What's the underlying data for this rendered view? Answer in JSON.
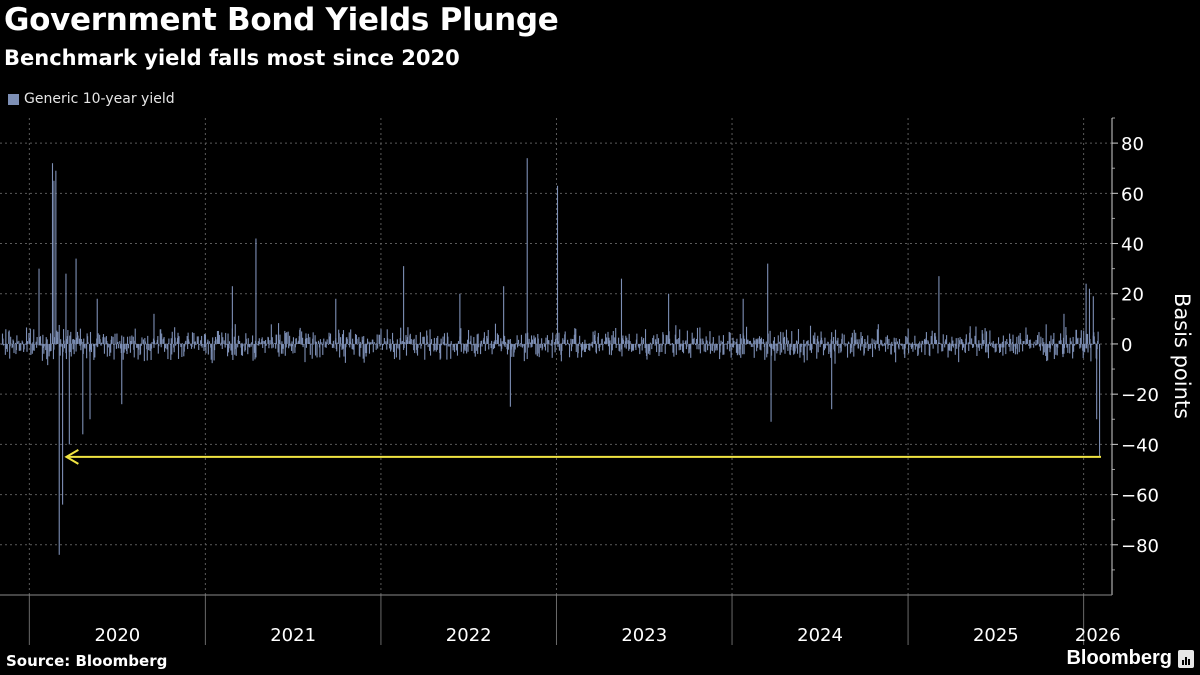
{
  "chart_data": {
    "type": "bar",
    "title": "Government Bond Yields Plunge",
    "subtitle": "Benchmark yield falls most since 2020",
    "ylabel": "Basis points",
    "ylim": [
      -100,
      90
    ],
    "yticks": [
      80,
      60,
      40,
      20,
      0,
      -20,
      -40,
      -60,
      -80
    ],
    "x_ticks": [
      "2020",
      "2021",
      "2022",
      "2023",
      "2024",
      "2025",
      "2026"
    ],
    "x_range": [
      "2019-11-01",
      "2026-03-01"
    ],
    "grid": true,
    "legend_position": "top-left",
    "series": [
      {
        "name": "Generic 10-year yield",
        "color": "#7d8fb5",
        "points": [
          [
            "2020-01-20",
            30
          ],
          [
            "2020-02-17",
            72
          ],
          [
            "2020-02-20",
            65
          ],
          [
            "2020-02-24",
            69
          ],
          [
            "2020-03-02",
            -84
          ],
          [
            "2020-03-09",
            -64
          ],
          [
            "2020-03-16",
            28
          ],
          [
            "2020-03-23",
            -40
          ],
          [
            "2020-04-06",
            34
          ],
          [
            "2020-04-20",
            -36
          ],
          [
            "2020-05-05",
            -30
          ],
          [
            "2020-05-20",
            18
          ],
          [
            "2020-07-10",
            -24
          ],
          [
            "2020-09-15",
            12
          ],
          [
            "2021-02-25",
            23
          ],
          [
            "2021-04-15",
            42
          ],
          [
            "2021-09-28",
            18
          ],
          [
            "2022-02-16",
            31
          ],
          [
            "2022-06-13",
            20
          ],
          [
            "2022-09-12",
            23
          ],
          [
            "2022-09-26",
            -25
          ],
          [
            "2022-10-31",
            74
          ],
          [
            "2023-01-02",
            63
          ],
          [
            "2023-05-15",
            26
          ],
          [
            "2023-08-21",
            20
          ],
          [
            "2024-01-23",
            18
          ],
          [
            "2024-03-14",
            32
          ],
          [
            "2024-03-21",
            -31
          ],
          [
            "2024-07-25",
            -26
          ],
          [
            "2025-03-05",
            27
          ],
          [
            "2025-11-20",
            12
          ],
          [
            "2026-01-05",
            24
          ],
          [
            "2026-01-12",
            22
          ],
          [
            "2026-01-20",
            19
          ],
          [
            "2026-01-27",
            -30
          ],
          [
            "2026-02-02",
            -45
          ]
        ]
      }
    ],
    "annotation": {
      "type": "arrow",
      "color": "#f0e442",
      "y": -45,
      "x_from": "2026-02-02",
      "x_to": "2020-03-18"
    }
  },
  "source": "Source: Bloomberg",
  "brand": "Bloomberg"
}
